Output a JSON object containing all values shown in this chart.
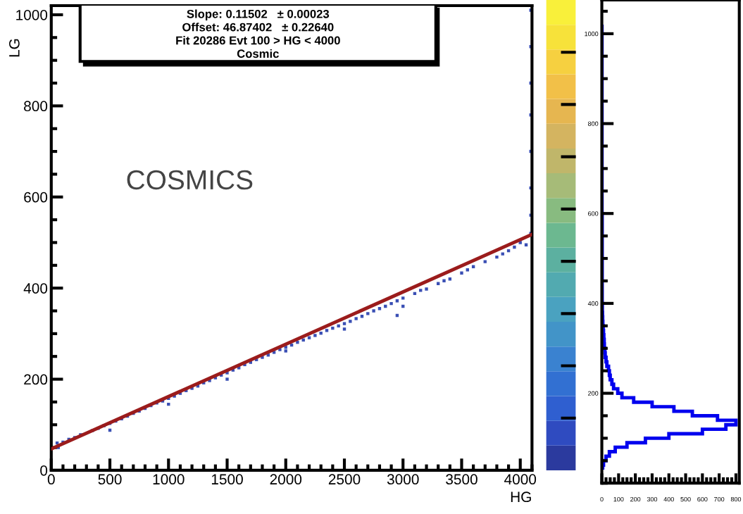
{
  "chart_data": [
    {
      "type": "scatter",
      "xlabel": "HG",
      "ylabel": "LG",
      "xlim": [
        0,
        4100
      ],
      "ylim": [
        0,
        1020
      ],
      "xticks": [
        0,
        500,
        1000,
        1500,
        2000,
        2500,
        3000,
        3500,
        4000
      ],
      "yticks": [
        0,
        200,
        400,
        600,
        800,
        1000
      ],
      "marker": "square",
      "grid": false,
      "annotations": [
        "Slope: 0.11502   ± 0.00023",
        "Offset: 46.87402   ± 0.22640",
        "Fit 20286 Evt 100 > HG < 4000",
        "Cosmic",
        "COSMICS"
      ],
      "series": [
        {
          "type": "scatter",
          "color": "#3a4fb4",
          "x": [
            50,
            60,
            100,
            150,
            200,
            250,
            300,
            350,
            400,
            450,
            500,
            550,
            600,
            650,
            700,
            750,
            800,
            850,
            900,
            950,
            1000,
            1050,
            1100,
            1150,
            1200,
            1250,
            1300,
            1350,
            1400,
            1450,
            1500,
            1550,
            1600,
            1650,
            1700,
            1750,
            1800,
            1850,
            1900,
            1950,
            2000,
            2050,
            2100,
            2150,
            2200,
            2250,
            2300,
            2350,
            2400,
            2450,
            2500,
            2550,
            2600,
            2650,
            2700,
            2750,
            2800,
            2850,
            2900,
            2950,
            3000,
            3100,
            3150,
            3200,
            3300,
            3350,
            3400,
            3500,
            3550,
            3600,
            3700,
            3800,
            3850,
            3900,
            3950,
            4000,
            4050,
            500,
            1000,
            1500,
            2000,
            2500,
            3000,
            2950,
            4090,
            4090,
            4090,
            4090,
            4090,
            4090,
            4090,
            4090
          ],
          "values": [
            60,
            50,
            62,
            68,
            72,
            78,
            null,
            87,
            92,
            98,
            103,
            108,
            113,
            119,
            125,
            130,
            136,
            142,
            148,
            152,
            158,
            163,
            169,
            175,
            180,
            185,
            192,
            197,
            203,
            209,
            214,
            220,
            225,
            232,
            237,
            243,
            248,
            253,
            259,
            265,
            270,
            275,
            281,
            286,
            291,
            296,
            301,
            307,
            312,
            317,
            322,
            327,
            333,
            338,
            344,
            350,
            355,
            360,
            366,
            372,
            378,
            388,
            395,
            398,
            410,
            416,
            420,
            433,
            440,
            447,
            458,
            468,
            475,
            482,
            490,
            500,
            495,
            88,
            145,
            200,
            262,
            310,
            360,
            340,
            520,
            560,
            620,
            700,
            780,
            850,
            930,
            1010
          ]
        },
        {
          "type": "line",
          "color": "#9b1c1c",
          "line_style": "solid",
          "marker": "none",
          "x": [
            0,
            4100
          ],
          "values": [
            47,
            518
          ]
        }
      ]
    },
    {
      "type": "histogram",
      "orientation": "horizontal",
      "color": "#0000ee",
      "bins": [
        30,
        40,
        50,
        60,
        70,
        80,
        90,
        100,
        110,
        120,
        130,
        140,
        150,
        160,
        170,
        180,
        190,
        200,
        210,
        220,
        230,
        240,
        250,
        260,
        270,
        280,
        290,
        300,
        310,
        320,
        330,
        340,
        350,
        360,
        370,
        380,
        390,
        400,
        500,
        600,
        700,
        800,
        900,
        1020
      ],
      "values": [
        5,
        10,
        25,
        45,
        80,
        150,
        260,
        400,
        600,
        740,
        800,
        690,
        540,
        430,
        300,
        190,
        120,
        95,
        70,
        60,
        50,
        45,
        40,
        30,
        25,
        20,
        18,
        15,
        14,
        12,
        10,
        8,
        6,
        5,
        4,
        3,
        3,
        2,
        2,
        1,
        1,
        1,
        1
      ],
      "xlim": [
        0,
        820
      ],
      "xticks": [
        0,
        100,
        200,
        300,
        400,
        500,
        600,
        700,
        800
      ],
      "ylim": [
        0,
        1075
      ],
      "yticks": [
        200,
        400,
        600,
        800,
        1000
      ],
      "grid": false
    }
  ]
}
